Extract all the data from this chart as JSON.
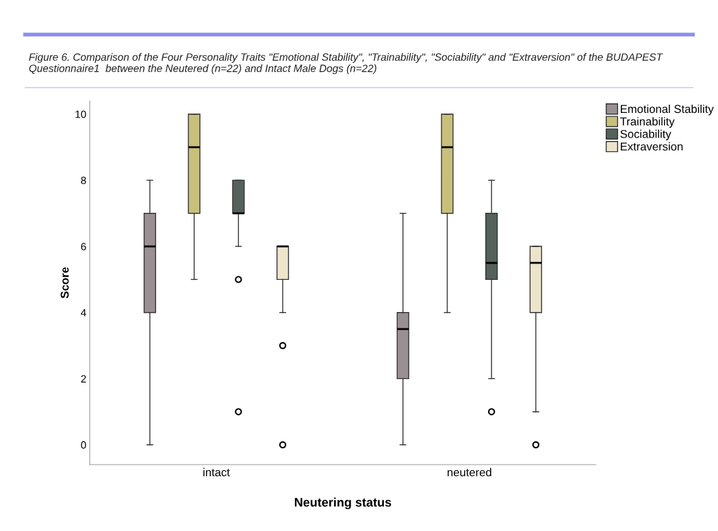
{
  "chart_data": {
    "type": "box",
    "title": "Figure 6. Comparison of the Four Personality Traits \"Emotional Stability\", \"Trainability\", \"Sociability\" and \"Extraversion\" of the BUDAPEST Questionnaire1  between the Neutered (n=22) and Intact Male Dogs (n=22)",
    "xlabel": "Neutering status",
    "ylabel": "Score",
    "categories": [
      "intact",
      "neutered"
    ],
    "ylim": [
      -0.6,
      10.4
    ],
    "yticks": [
      0,
      2,
      4,
      6,
      8,
      10
    ],
    "grid": false,
    "legend": "top right",
    "series": [
      {
        "name": "Emotional Stability",
        "color": "#9a9093",
        "boxes": [
          {
            "low": 0,
            "q1": 4,
            "median": 6,
            "q3": 7,
            "high": 8
          },
          {
            "low": 0,
            "q1": 2,
            "median": 3.5,
            "q3": 4,
            "high": 7
          }
        ]
      },
      {
        "name": "Trainability",
        "color": "#c8c07a",
        "boxes": [
          {
            "low": 5,
            "q1": 7,
            "median": 9,
            "q3": 10,
            "high": 10
          },
          {
            "low": 4,
            "q1": 7,
            "median": 9,
            "q3": 10,
            "high": 10
          }
        ]
      },
      {
        "name": "Sociability",
        "color": "#55625c",
        "boxes": [
          {
            "low": 6,
            "q1": 7,
            "median": 7,
            "q3": 8,
            "high": 8,
            "outliers": [
              5,
              1
            ]
          },
          {
            "low": 2,
            "q1": 5,
            "median": 5.5,
            "q3": 7,
            "high": 8,
            "outliers": [
              1
            ]
          }
        ]
      },
      {
        "name": "Extraversion",
        "color": "#ede4cc",
        "boxes": [
          {
            "low": 4,
            "q1": 5,
            "median": 6,
            "q3": 6,
            "high": 6,
            "outliers": [
              3,
              0
            ]
          },
          {
            "low": 1,
            "q1": 4,
            "median": 5.5,
            "q3": 6,
            "high": 6,
            "outliers": [
              0
            ]
          }
        ]
      }
    ]
  }
}
